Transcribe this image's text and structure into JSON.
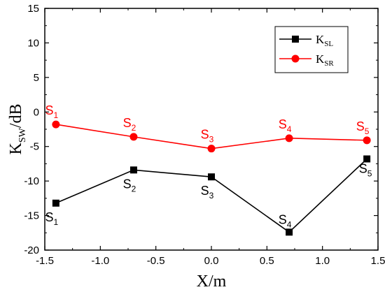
{
  "chart_data": {
    "type": "line",
    "xlabel": "X/m",
    "ylabel": {
      "main": "K",
      "sub": "SW",
      "suffix": "/dB"
    },
    "xlim": [
      -1.5,
      1.5
    ],
    "ylim": [
      -20,
      15
    ],
    "xticks": [
      -1.5,
      -1.0,
      -0.5,
      0.0,
      0.5,
      1.0,
      1.5
    ],
    "xtick_labels": [
      "-1.5",
      "-1.0",
      "-0.5",
      "0.0",
      "0.5",
      "1.0",
      "1.5"
    ],
    "yticks": [
      -20,
      -15,
      -10,
      -5,
      0,
      5,
      10,
      15
    ],
    "ytick_labels": [
      "-20",
      "-15",
      "-10",
      "-5",
      "0",
      "5",
      "10",
      "15"
    ],
    "grid": false,
    "legend_position": "top-right",
    "series": [
      {
        "name": {
          "main": "K",
          "sub": "SL"
        },
        "color": "#000000",
        "marker": "square",
        "x": [
          -1.4,
          -0.7,
          0.0,
          0.7,
          1.4
        ],
        "y": [
          -13.2,
          -8.4,
          -9.4,
          -17.4,
          -6.8
        ],
        "point_labels": [
          {
            "main": "S",
            "sub": "1"
          },
          {
            "main": "S",
            "sub": "2"
          },
          {
            "main": "S",
            "sub": "3"
          },
          {
            "main": "S",
            "sub": "4"
          },
          {
            "main": "S",
            "sub": "5"
          }
        ]
      },
      {
        "name": {
          "main": "K",
          "sub": "SR"
        },
        "color": "#ff0000",
        "marker": "circle",
        "x": [
          -1.4,
          -0.7,
          0.0,
          0.7,
          1.4
        ],
        "y": [
          -1.8,
          -3.6,
          -5.3,
          -3.8,
          -4.1
        ],
        "point_labels": [
          {
            "main": "S",
            "sub": "1"
          },
          {
            "main": "S",
            "sub": "2"
          },
          {
            "main": "S",
            "sub": "3"
          },
          {
            "main": "S",
            "sub": "4"
          },
          {
            "main": "S",
            "sub": "5"
          }
        ]
      }
    ]
  }
}
